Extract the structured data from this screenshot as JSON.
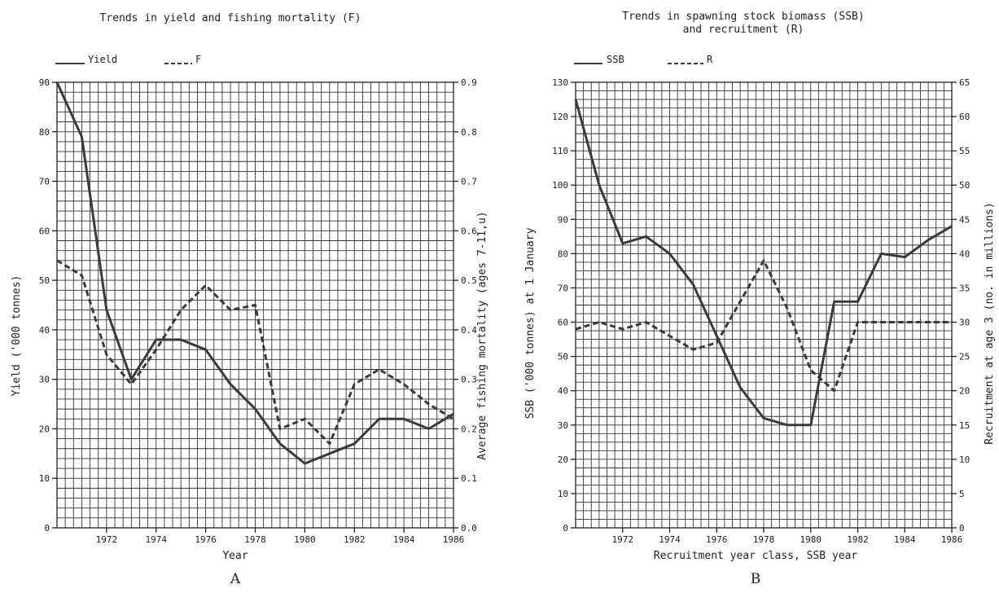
{
  "chart_data": [
    {
      "type": "line",
      "panel_label": "A",
      "title": "Trends in yield and fishing mortality (F)",
      "xlabel": "Year",
      "ylabel": "Yield ('000 tonnes)",
      "y2label": "Average fishing mortality (ages 7-11,u)",
      "xlim": [
        1970,
        1986
      ],
      "ylim": [
        0,
        90
      ],
      "y2lim": [
        0,
        0.9
      ],
      "x_ticks": [
        1972,
        1974,
        1976,
        1978,
        1980,
        1982,
        1984,
        1986
      ],
      "y_ticks": [
        0,
        10,
        20,
        30,
        40,
        50,
        60,
        70,
        80,
        90
      ],
      "y2_ticks": [
        "0.0",
        "0.1",
        "0.2",
        "0.3",
        "0.4",
        "0.5",
        "0.6",
        "0.7",
        "0.8",
        "0.9"
      ],
      "grid": true,
      "legend_placement": "top-left",
      "x": [
        1970,
        1971,
        1972,
        1973,
        1974,
        1975,
        1976,
        1977,
        1978,
        1979,
        1980,
        1981,
        1982,
        1983,
        1984,
        1985,
        1986
      ],
      "series": [
        {
          "name": "Yield",
          "axis": "left",
          "style": "solid",
          "values": [
            90,
            79,
            44,
            30,
            38,
            38,
            36,
            29,
            24,
            17,
            13,
            15,
            17,
            22,
            22,
            20,
            23
          ]
        },
        {
          "name": "F",
          "axis": "right",
          "style": "dashed",
          "values": [
            0.54,
            0.51,
            0.35,
            0.29,
            0.36,
            0.44,
            0.49,
            0.44,
            0.45,
            0.2,
            0.22,
            0.17,
            0.29,
            0.32,
            0.29,
            0.25,
            0.22
          ]
        }
      ]
    },
    {
      "type": "line",
      "panel_label": "B",
      "title": "Trends in spawning stock biomass (SSB)",
      "title_line2": "and recruitment (R)",
      "xlabel": "Recruitment year class, SSB year",
      "ylabel": "SSB ('000 tonnes) at 1 January",
      "y2label": "Recruitment at age 3 (no. in millions)",
      "xlim": [
        1970,
        1986
      ],
      "ylim": [
        0,
        130
      ],
      "y2lim": [
        0,
        65
      ],
      "x_ticks": [
        1972,
        1974,
        1976,
        1978,
        1980,
        1982,
        1984,
        1986
      ],
      "y_ticks": [
        0,
        10,
        20,
        30,
        40,
        50,
        60,
        70,
        80,
        90,
        100,
        110,
        120,
        130
      ],
      "y2_ticks": [
        0,
        5,
        10,
        15,
        20,
        25,
        30,
        35,
        40,
        45,
        50,
        55,
        60,
        65
      ],
      "grid": true,
      "legend_placement": "top-left",
      "x": [
        1970,
        1971,
        1972,
        1973,
        1974,
        1975,
        1976,
        1977,
        1978,
        1979,
        1980,
        1981,
        1982,
        1983,
        1984,
        1985,
        1986
      ],
      "series": [
        {
          "name": "SSB",
          "axis": "left",
          "style": "solid",
          "values": [
            125,
            100,
            83,
            85,
            80,
            71,
            56,
            41,
            32,
            30,
            30,
            66,
            66,
            80,
            79,
            84,
            88
          ]
        },
        {
          "name": "R",
          "axis": "right",
          "style": "dashed",
          "values": [
            29,
            30,
            29,
            30,
            28,
            26,
            27,
            33,
            39,
            32,
            23,
            20,
            30,
            30,
            30,
            30,
            30
          ]
        }
      ]
    }
  ]
}
